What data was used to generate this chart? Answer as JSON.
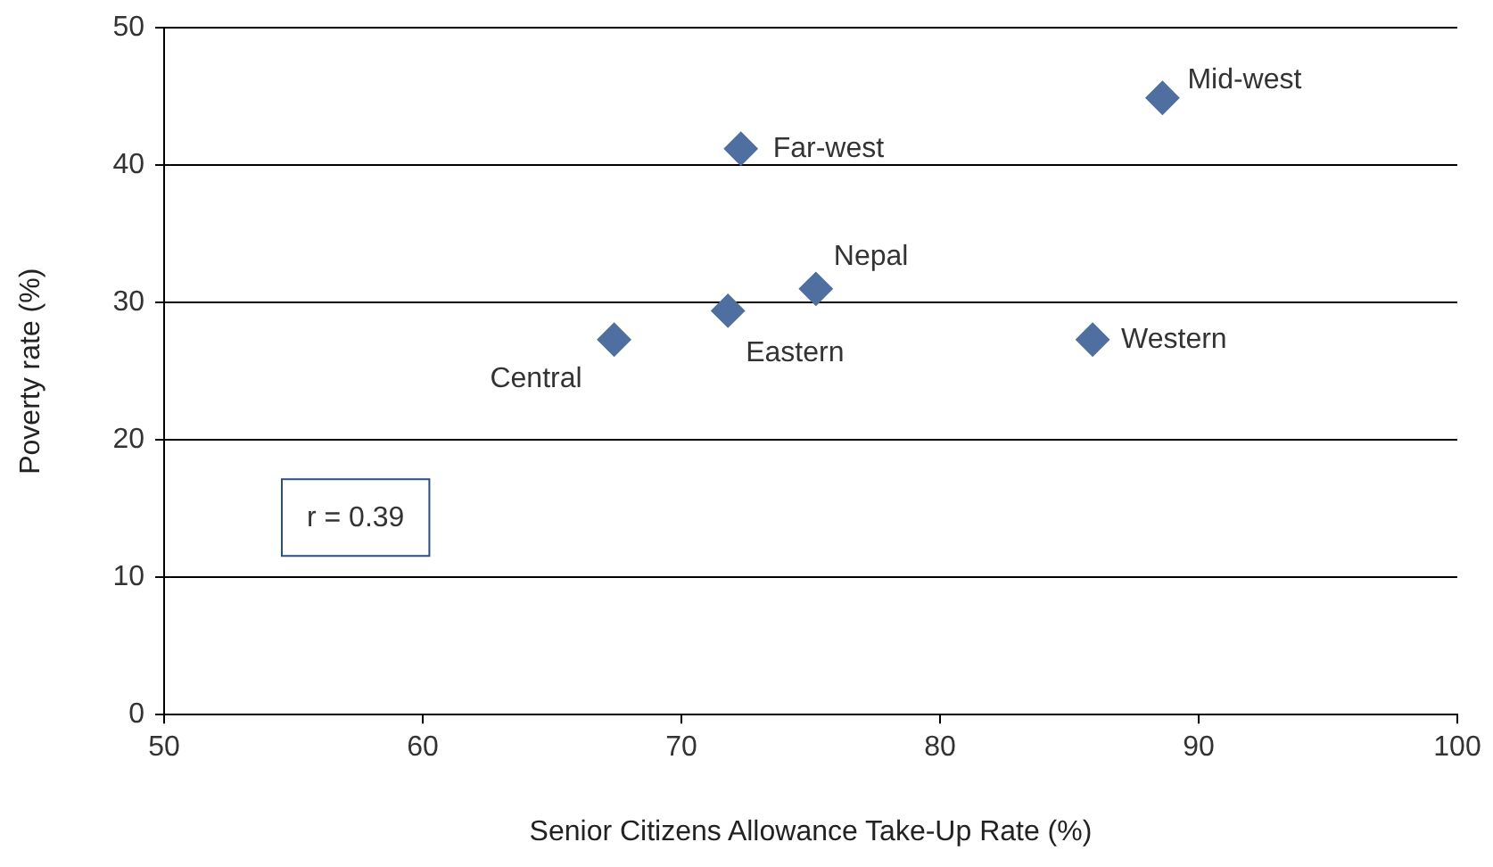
{
  "chart_data": {
    "type": "scatter",
    "xlabel": "Senior Citizens Allowance Take-Up Rate (%)",
    "ylabel": "Poverty rate (%)",
    "x": [
      67.4,
      71.8,
      72.3,
      75.2,
      85.9,
      88.6
    ],
    "values": [
      27.3,
      29.4,
      41.2,
      31.0,
      27.3,
      44.9
    ],
    "color": "#4f6fa0",
    "marker": "diamond",
    "xlim": [
      50,
      100
    ],
    "xticks": [
      50,
      60,
      70,
      80,
      90,
      100
    ],
    "ylim": [
      0,
      50
    ],
    "yticks": [
      0,
      10,
      20,
      30,
      40,
      50
    ],
    "grid": "y",
    "legend": false,
    "annotations": [
      {
        "text": "Central",
        "x": 67.4,
        "y": 27.3
      },
      {
        "text": "Eastern",
        "x": 71.8,
        "y": 29.4
      },
      {
        "text": "Far-west",
        "x": 72.3,
        "y": 41.2
      },
      {
        "text": "Nepal",
        "x": 75.2,
        "y": 31.0
      },
      {
        "text": "Western",
        "x": 85.9,
        "y": 27.3
      },
      {
        "text": "Mid-west",
        "x": 88.6,
        "y": 44.9
      },
      "r = 0.39"
    ]
  }
}
